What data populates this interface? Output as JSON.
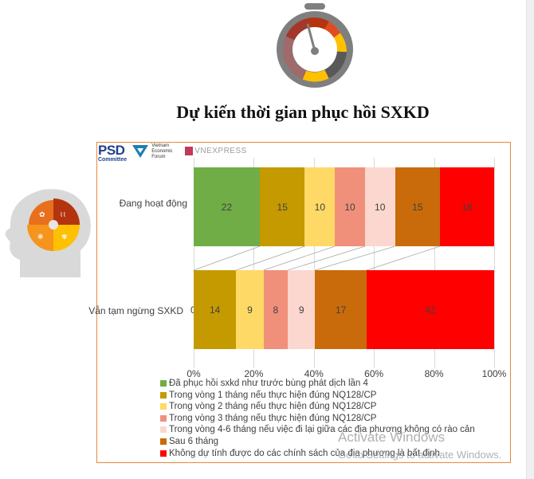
{
  "title": "Dự kiến thời gian phục hồi SXKD",
  "logos": {
    "psd": "PSD",
    "psd_sub": "Committee",
    "vef": "Vietnam Economic Forum",
    "vnexpress": "VNEXPRESS"
  },
  "colors": {
    "frame": "#e8883a",
    "s0": "#70ad47",
    "s1": "#c49a00",
    "s2": "#ffd966",
    "s3": "#f0907a",
    "s4": "#fcd7cf",
    "s5": "#c96b0a",
    "s6": "#ff0000"
  },
  "chart_data": {
    "type": "bar",
    "orientation": "horizontal",
    "stacked": "100%",
    "title": "Dự kiến thời gian phục hồi SXKD",
    "categories": [
      "Đang hoạt động",
      "Vẫn tạm ngừng SXKD"
    ],
    "series": [
      {
        "name": "Đã phục hồi sxkd như trước bùng phát dịch lần 4",
        "values": [
          22,
          0
        ]
      },
      {
        "name": "Trong vòng 1 tháng nếu thực hiện đúng NQ128/CP",
        "values": [
          15,
          14
        ]
      },
      {
        "name": "Trong vòng 2 tháng nếu thực hiện đúng NQ128/CP",
        "values": [
          10,
          9
        ]
      },
      {
        "name": "Trong vòng 3 tháng nếu thực hiện đúng NQ128/CP",
        "values": [
          10,
          8
        ]
      },
      {
        "name": "Trong vòng 4-6 tháng nếu việc đi lại giữa các địa phương không có rào cản",
        "values": [
          10,
          9
        ]
      },
      {
        "name": "Sau 6 tháng",
        "values": [
          15,
          17
        ]
      },
      {
        "name": "Không dự tính được do các chính sách của địa phương là bất định",
        "values": [
          18,
          42
        ]
      }
    ],
    "xlabel": "",
    "ylabel": "",
    "xlim": [
      0,
      1
    ],
    "x_ticks": [
      "0%",
      "20%",
      "40%",
      "60%",
      "80%",
      "100%"
    ],
    "grid": true,
    "series_lines": true,
    "legend_position": "bottom"
  },
  "watermark": {
    "line1": "Activate Windows",
    "line2": "Go to Settings to activate Windows."
  }
}
